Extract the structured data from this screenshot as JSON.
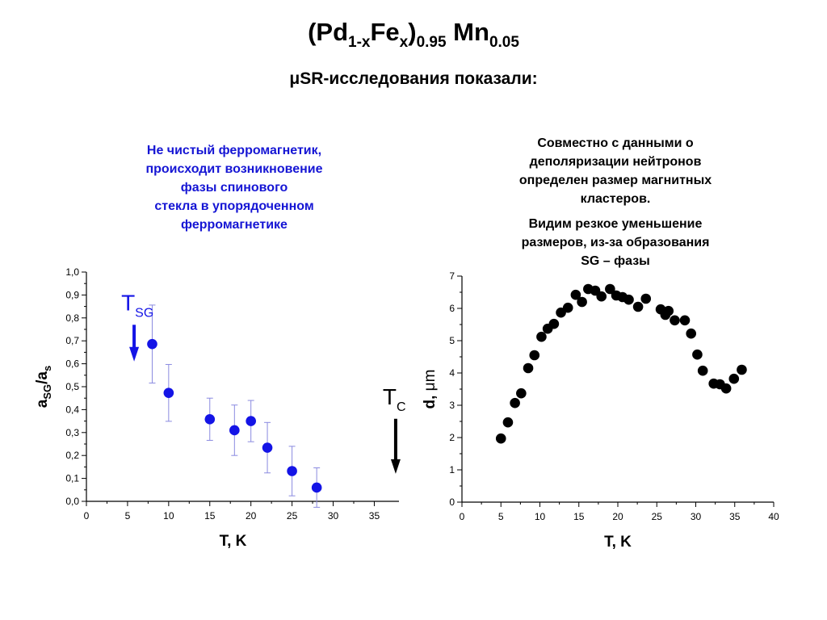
{
  "header": {
    "title_parts": [
      "(Pd",
      "1-x",
      "Fe",
      "x",
      ")",
      "0.95",
      " Mn",
      "0.05"
    ],
    "subtitle": "μSR-исследования показали:"
  },
  "left_note": {
    "lines": [
      "Не чистый ферромагнетик,",
      "происходит возникновение",
      "фазы спинового",
      "стекла в упорядоченном",
      "ферромагнетике"
    ],
    "color": "#1515d4"
  },
  "right_note": {
    "p1": [
      "Совместно с данными о",
      "деполяризации нейтронов",
      "определен размер магнитных",
      "кластеров."
    ],
    "p2": [
      "Видим резкое уменьшение",
      "размеров, из-за образования",
      "SG – фазы"
    ]
  },
  "chart_data": [
    {
      "type": "scatter",
      "xlabel": "T,  K",
      "ylabel": {
        "main": "a",
        "sub1": "SG",
        "mid": "/a",
        "sub2": "s"
      },
      "xlim": [
        0,
        38
      ],
      "ylim": [
        0,
        1.0
      ],
      "xticks": [
        0,
        5,
        10,
        15,
        20,
        25,
        30,
        35
      ],
      "xtick_labels": [
        "0",
        "5",
        "10",
        "15",
        "20",
        "25",
        "30",
        "35"
      ],
      "yticks": [
        0,
        0.1,
        0.2,
        0.3,
        0.4,
        0.5,
        0.6,
        0.7,
        0.8,
        0.9,
        1.0
      ],
      "ytick_labels": [
        "0,0",
        "0,1",
        "0,2",
        "0,3",
        "0,4",
        "0,5",
        "0,6",
        "0,7",
        "0,8",
        "0,9",
        "1,0"
      ],
      "marker_color": "#1414e6",
      "errorbar_color": "#8a8ae0",
      "points": [
        {
          "x": 8,
          "y": 0.686,
          "err": 0.17
        },
        {
          "x": 10,
          "y": 0.473,
          "err": 0.124
        },
        {
          "x": 15,
          "y": 0.358,
          "err": 0.092
        },
        {
          "x": 18,
          "y": 0.31,
          "err": 0.11
        },
        {
          "x": 20,
          "y": 0.35,
          "err": 0.09
        },
        {
          "x": 22,
          "y": 0.234,
          "err": 0.11
        },
        {
          "x": 25,
          "y": 0.132,
          "err": 0.108
        },
        {
          "x": 28,
          "y": 0.06,
          "err": 0.086
        }
      ],
      "annotations": [
        {
          "main": "T",
          "sub": "SG",
          "color": "#1414e6",
          "x": 5.8,
          "y_from": 0.77,
          "y_to": 0.61
        },
        {
          "main": "T",
          "sub": "C",
          "color": "#000000",
          "x": 37.6,
          "y_from": 0.36,
          "y_to": 0.12
        }
      ]
    },
    {
      "type": "scatter",
      "xlabel": "T, K",
      "ylabel": {
        "main": "d, ",
        "unit": "μm"
      },
      "xlim": [
        0,
        40
      ],
      "ylim": [
        0,
        7
      ],
      "xticks": [
        0,
        5,
        10,
        15,
        20,
        25,
        30,
        35,
        40
      ],
      "xtick_labels": [
        "0",
        "5",
        "10",
        "15",
        "20",
        "25",
        "30",
        "35",
        "40"
      ],
      "yticks": [
        0,
        1,
        2,
        3,
        4,
        5,
        6,
        7
      ],
      "ytick_labels": [
        "0",
        "1",
        "2",
        "3",
        "4",
        "5",
        "6",
        "7"
      ],
      "marker_color": "#000000",
      "points": [
        {
          "x": 5.0,
          "y": 1.97
        },
        {
          "x": 5.9,
          "y": 2.47
        },
        {
          "x": 6.8,
          "y": 3.07
        },
        {
          "x": 7.6,
          "y": 3.37
        },
        {
          "x": 8.5,
          "y": 4.15
        },
        {
          "x": 9.3,
          "y": 4.55
        },
        {
          "x": 10.2,
          "y": 5.12
        },
        {
          "x": 11.0,
          "y": 5.37
        },
        {
          "x": 11.8,
          "y": 5.52
        },
        {
          "x": 12.7,
          "y": 5.87
        },
        {
          "x": 13.6,
          "y": 6.02
        },
        {
          "x": 14.6,
          "y": 6.42
        },
        {
          "x": 15.4,
          "y": 6.2
        },
        {
          "x": 16.2,
          "y": 6.6
        },
        {
          "x": 17.1,
          "y": 6.55
        },
        {
          "x": 17.9,
          "y": 6.37
        },
        {
          "x": 19.0,
          "y": 6.6
        },
        {
          "x": 19.8,
          "y": 6.4
        },
        {
          "x": 20.6,
          "y": 6.35
        },
        {
          "x": 21.4,
          "y": 6.27
        },
        {
          "x": 22.6,
          "y": 6.05
        },
        {
          "x": 23.6,
          "y": 6.3
        },
        {
          "x": 25.5,
          "y": 5.97
        },
        {
          "x": 26.1,
          "y": 5.8
        },
        {
          "x": 26.5,
          "y": 5.92
        },
        {
          "x": 27.3,
          "y": 5.63
        },
        {
          "x": 28.6,
          "y": 5.63
        },
        {
          "x": 29.4,
          "y": 5.22
        },
        {
          "x": 30.2,
          "y": 4.57
        },
        {
          "x": 30.9,
          "y": 4.07
        },
        {
          "x": 32.3,
          "y": 3.67
        },
        {
          "x": 33.1,
          "y": 3.65
        },
        {
          "x": 33.9,
          "y": 3.52
        },
        {
          "x": 34.9,
          "y": 3.82
        },
        {
          "x": 35.9,
          "y": 4.1
        }
      ]
    }
  ]
}
